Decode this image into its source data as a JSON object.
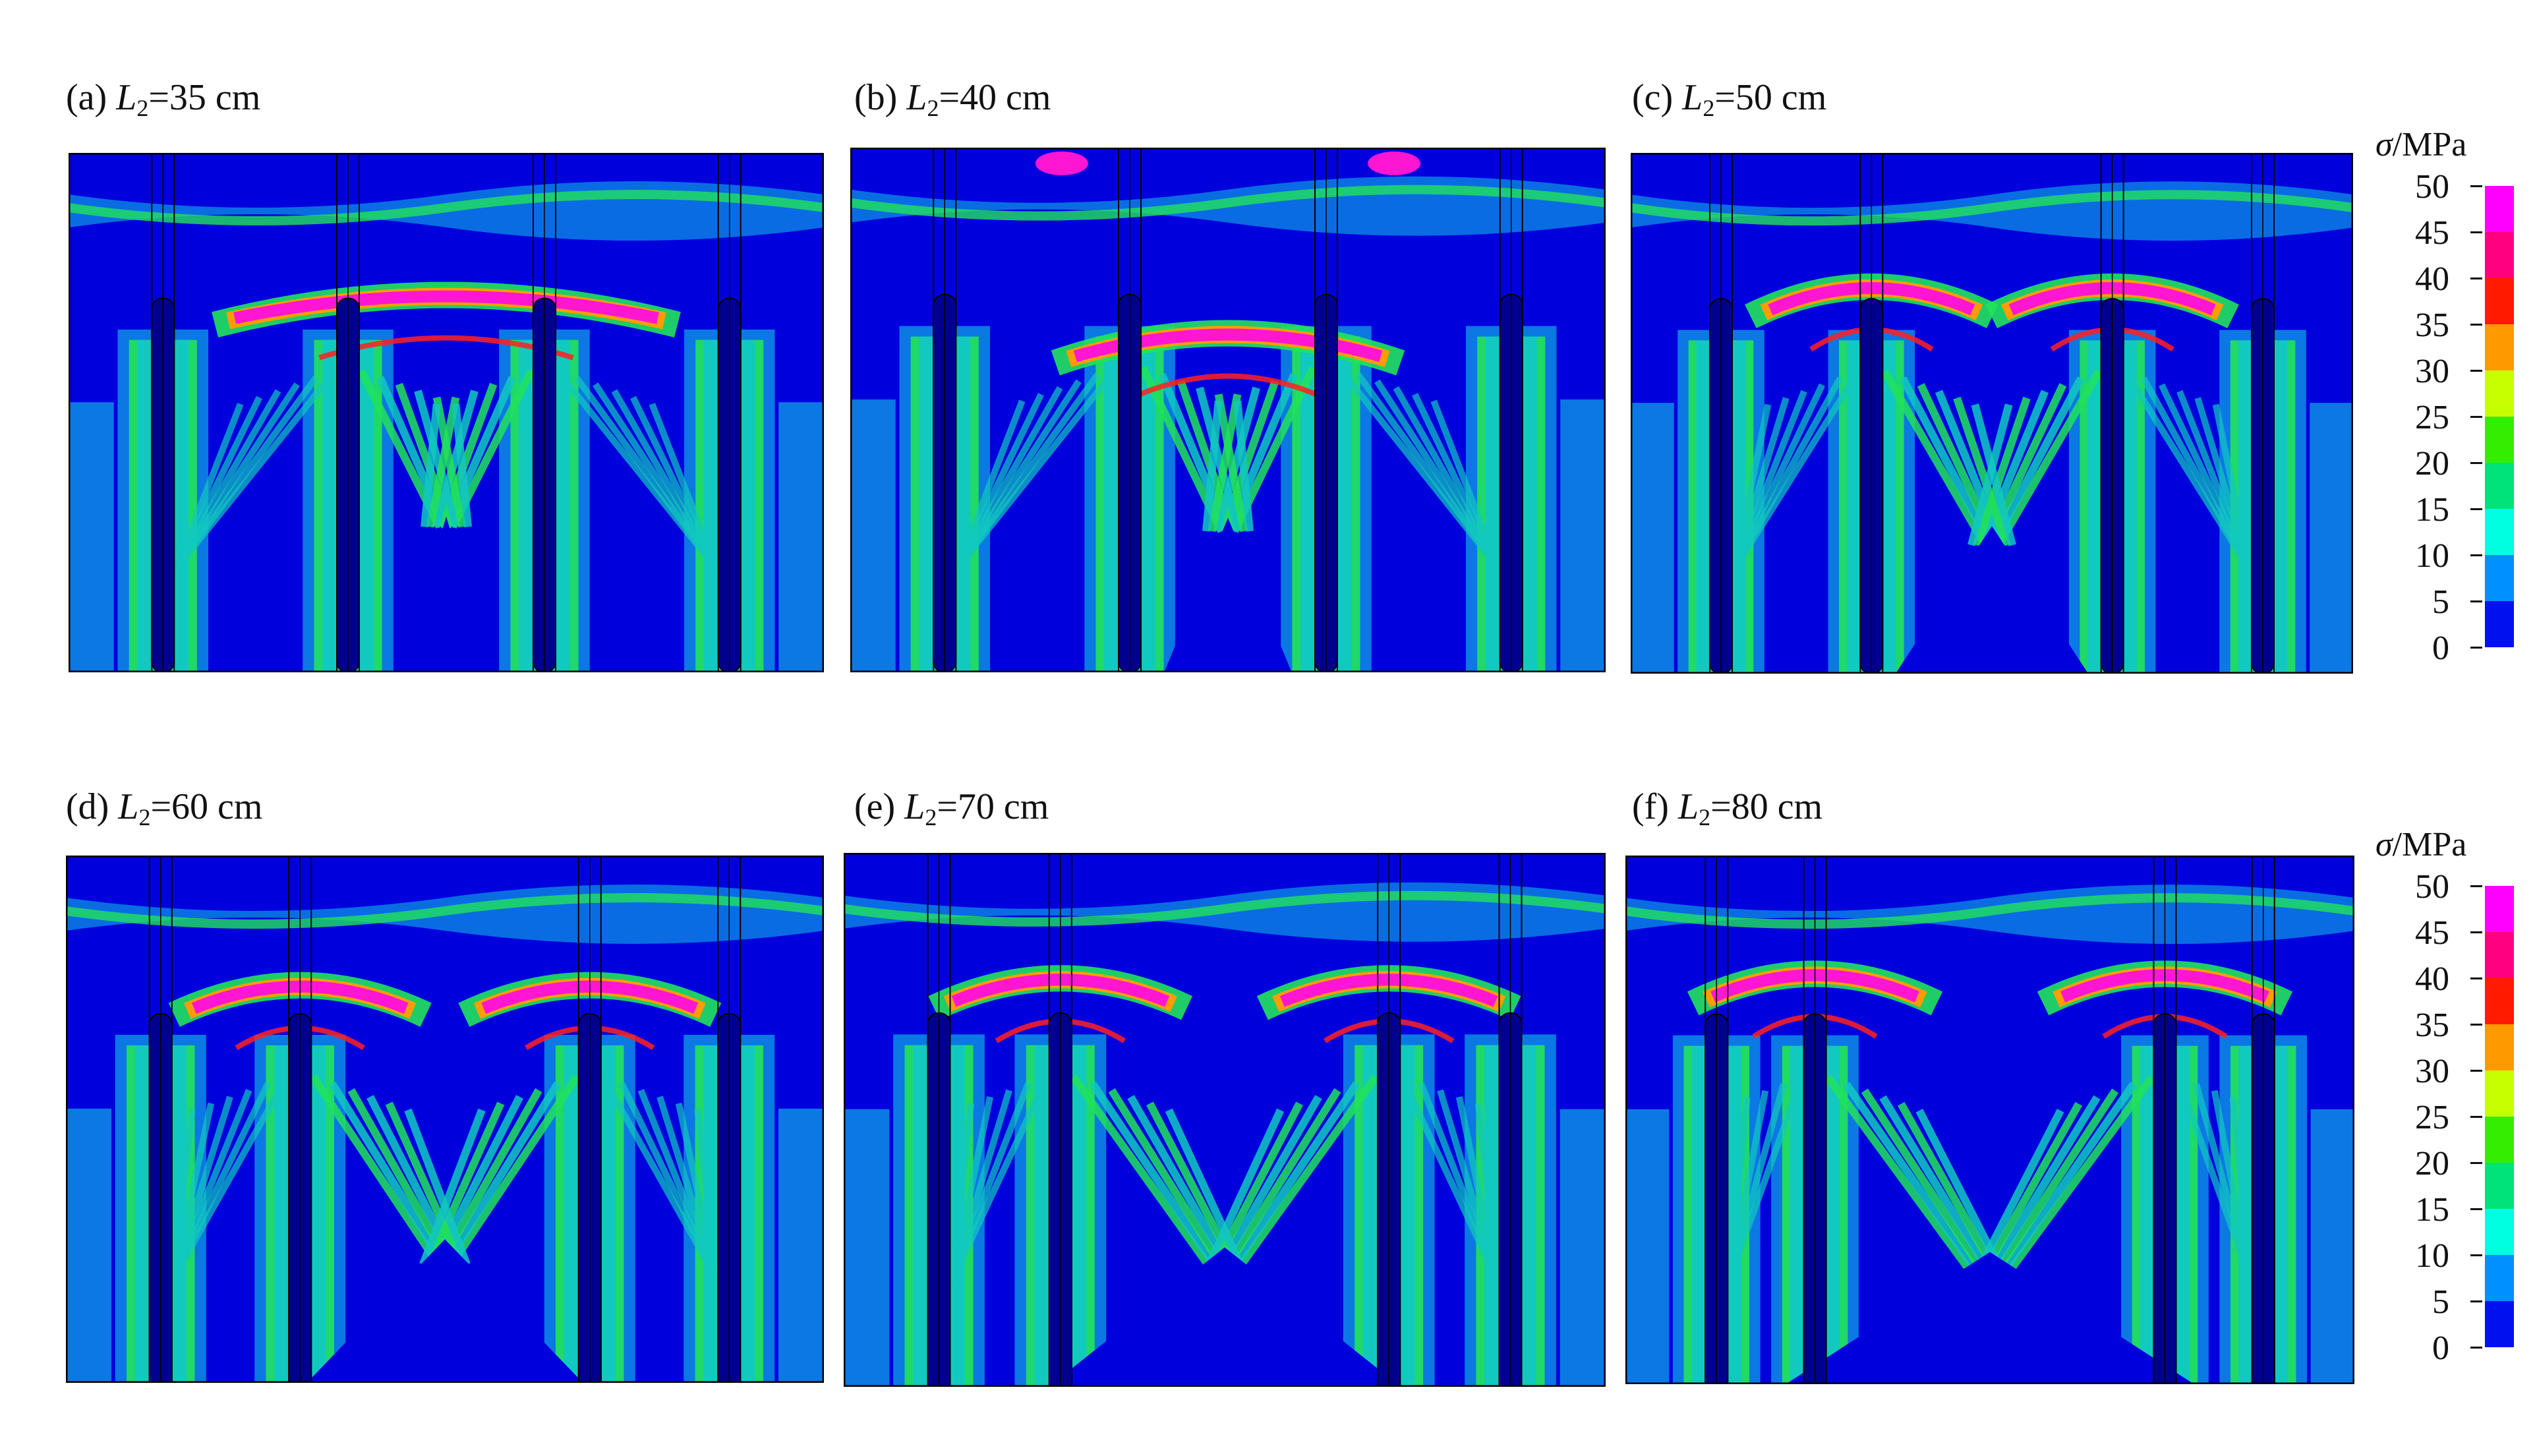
{
  "panels": [
    {
      "id": "a",
      "prefix": "(a) ",
      "var": "L",
      "sub": "2",
      "rest": "=35 cm",
      "L2_cm": 35
    },
    {
      "id": "b",
      "prefix": "(b) ",
      "var": "L",
      "sub": "2",
      "rest": "=40 cm",
      "L2_cm": 40
    },
    {
      "id": "c",
      "prefix": "(c) ",
      "var": "L",
      "sub": "2",
      "rest": "=50 cm",
      "L2_cm": 50
    },
    {
      "id": "d",
      "prefix": "(d) ",
      "var": "L",
      "sub": "2",
      "rest": "=60 cm",
      "L2_cm": 60
    },
    {
      "id": "e",
      "prefix": "(e) ",
      "var": "L",
      "sub": "2",
      "rest": "=70 cm",
      "L2_cm": 70
    },
    {
      "id": "f",
      "prefix": "(f) ",
      "var": "L",
      "sub": "2",
      "rest": "=80 cm",
      "L2_cm": 80
    }
  ],
  "legend": {
    "symbol": "σ",
    "unit": "/MPa",
    "ticks": [
      "50",
      "45",
      "40",
      "35",
      "30",
      "25",
      "20",
      "15",
      "10",
      "5",
      "0"
    ],
    "colors": [
      "#ff00ff",
      "#ff0080",
      "#ff1a00",
      "#ff9900",
      "#c8ff00",
      "#33ee00",
      "#00e27a",
      "#00ffe0",
      "#0090ff",
      "#0010ee"
    ]
  },
  "colors": {
    "background": "#0000dd",
    "low": "#0b78e3",
    "mid": "#12c9c0",
    "green": "#21e35a",
    "yellow": "#c2ff00",
    "orange": "#ff9d00",
    "red": "#ff2020",
    "magenta": "#ff16d2",
    "rod": "#000090"
  }
}
